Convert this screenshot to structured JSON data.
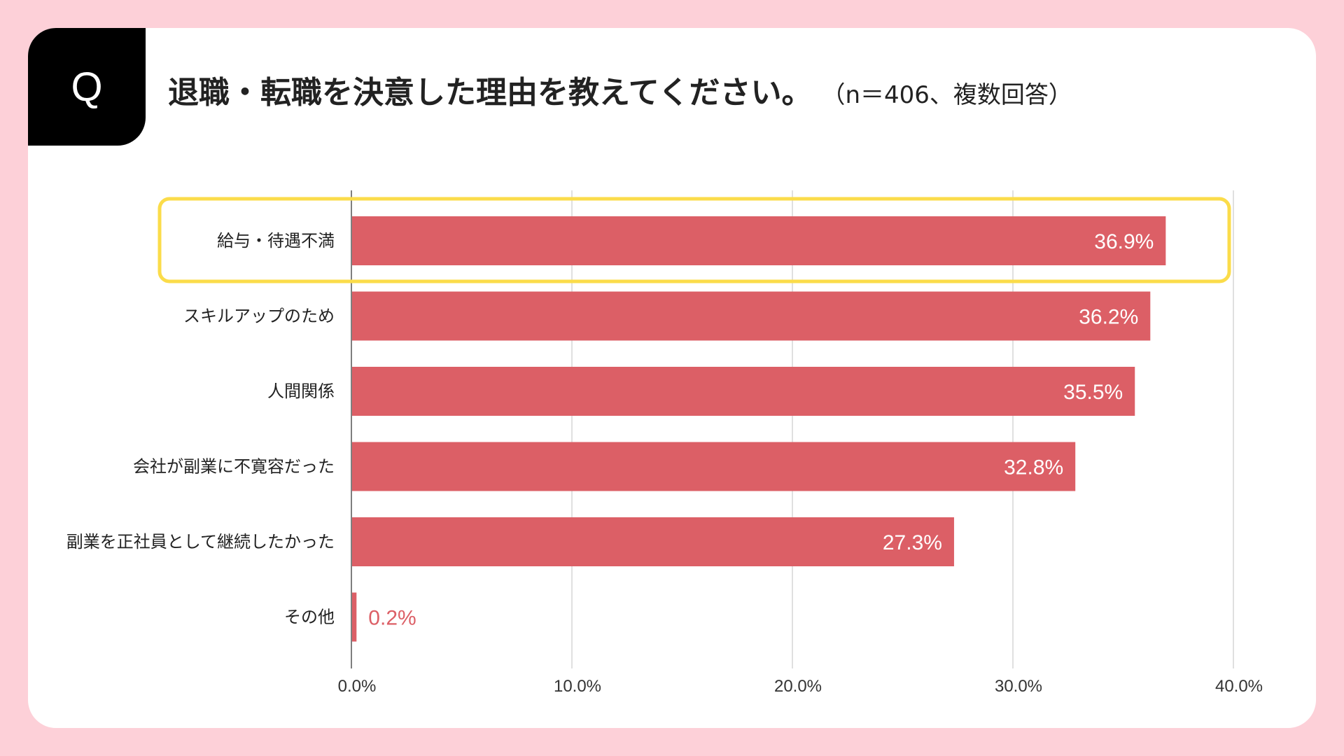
{
  "header": {
    "badge": "Q",
    "title": "退職・転職を決意した理由を教えてください。",
    "subtitle": "（n＝406、複数回答）"
  },
  "colors": {
    "background": "#fdd0d8",
    "bar": "#dc5f66",
    "highlight": "#fbdc4a"
  },
  "chart_data": {
    "type": "bar",
    "orientation": "horizontal",
    "categories": [
      "給与・待遇不満",
      "スキルアップのため",
      "人間関係",
      "会社が副業に不寛容だった",
      "副業を正社員として継続したかった",
      "その他"
    ],
    "values": [
      36.9,
      36.2,
      35.5,
      32.8,
      27.3,
      0.2
    ],
    "data_labels": [
      "36.9%",
      "36.2%",
      "35.5%",
      "32.8%",
      "27.3%",
      "0.2%"
    ],
    "xlim": [
      0,
      40
    ],
    "xticks": [
      "0.0%",
      "10.0%",
      "20.0%",
      "30.0%",
      "40.0%"
    ],
    "grid": "vertical",
    "highlighted_category": "給与・待遇不満"
  }
}
